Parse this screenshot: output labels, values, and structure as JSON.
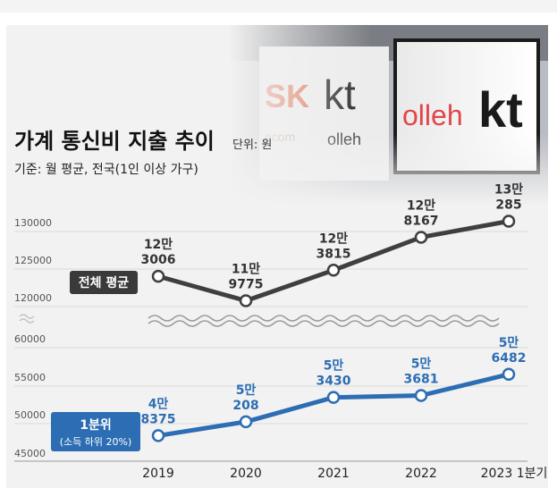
{
  "header": {
    "title": "가계 통신비 지출 추이",
    "unit": "단위: 원",
    "basis": "기준: 월 평균, 전국(1인 이상 가구)"
  },
  "photo": {
    "sign_left_brand": "SK",
    "sign_left_kt": "kt",
    "sign_left_small": "olleh",
    "sign_left_fragment": "ecom",
    "sign_right_olleh": "olleh",
    "sign_right_kt": "kt"
  },
  "colors": {
    "upper_series": "#3f3f3f",
    "lower_series": "#2c6db3",
    "label_upper": "#333333",
    "label_lower": "#2c6db3",
    "background": "#f2f2f2"
  },
  "chart_data": {
    "type": "line",
    "title": "가계 통신비 지출 추이",
    "x": [
      "2019",
      "2020",
      "2021",
      "2022",
      "2023 1분기"
    ],
    "axis_break": true,
    "upper_axis": {
      "ylim": [
        117000,
        132000
      ],
      "ticks": [
        "130000",
        "125000",
        "120000"
      ]
    },
    "lower_axis": {
      "ylim": [
        45000,
        60000
      ],
      "ticks": [
        "60000",
        "55000",
        "50000",
        "45000"
      ]
    },
    "series": [
      {
        "name": "전체 평균",
        "values": [
          123006,
          119775,
          123815,
          128167,
          130285
        ],
        "labels": [
          [
            "12만",
            "3006"
          ],
          [
            "11만",
            "9775"
          ],
          [
            "12만",
            "3815"
          ],
          [
            "12만",
            "8167"
          ],
          [
            "13만",
            "285"
          ]
        ]
      },
      {
        "name": "1분위",
        "subname": "(소득 하위 20%)",
        "values": [
          48375,
          50208,
          53430,
          53681,
          56482
        ],
        "labels": [
          [
            "4만",
            "8375"
          ],
          [
            "5만",
            "208"
          ],
          [
            "5만",
            "3430"
          ],
          [
            "5만",
            "3681"
          ],
          [
            "5만",
            "6482"
          ]
        ]
      }
    ]
  }
}
